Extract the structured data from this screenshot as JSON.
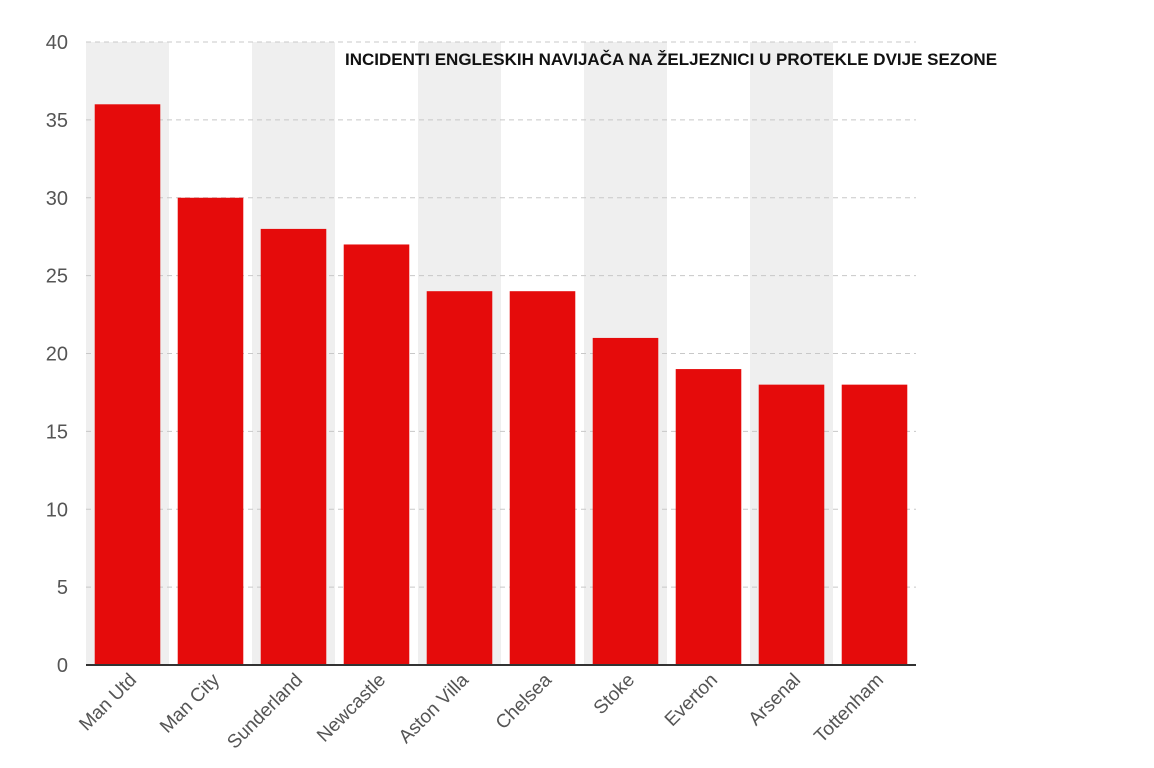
{
  "chart_data": {
    "type": "bar",
    "title": "INCIDENTI ENGLESKIH NAVIJAČA NA ŽELJEZNICI U PROTEKLE DVIJE SEZONE",
    "xlabel": "",
    "ylabel": "",
    "categories": [
      "Man Utd",
      "Man City",
      "Sunderland",
      "Newcastle",
      "Aston Villa",
      "Chelsea",
      "Stoke",
      "Everton",
      "Arsenal",
      "Tottenham"
    ],
    "values": [
      36,
      30,
      28,
      27,
      24,
      24,
      21,
      19,
      18,
      18
    ],
    "ylim": [
      0,
      40
    ],
    "yticks": [
      0,
      5,
      10,
      15,
      20,
      25,
      30,
      35,
      40
    ],
    "grid": true,
    "bar_color": "#e50b0b",
    "band_color": "#efefef"
  }
}
